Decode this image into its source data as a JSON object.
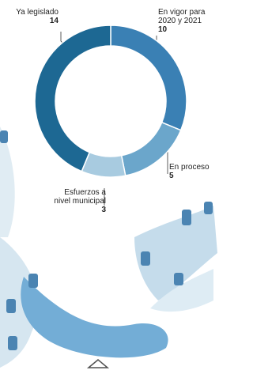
{
  "chart_data": {
    "type": "donut",
    "labels": [
      [
        "En vigor para",
        "2020 y 2021"
      ],
      [
        "En proceso"
      ],
      [
        "Esfuerzos a",
        "nivel municipal"
      ],
      [
        "Ya legislado"
      ]
    ],
    "values": [
      10,
      5,
      3,
      14
    ],
    "colors": [
      "#3a80b4",
      "#6ba6cb",
      "#a8cbe0",
      "#1d6893"
    ]
  }
}
